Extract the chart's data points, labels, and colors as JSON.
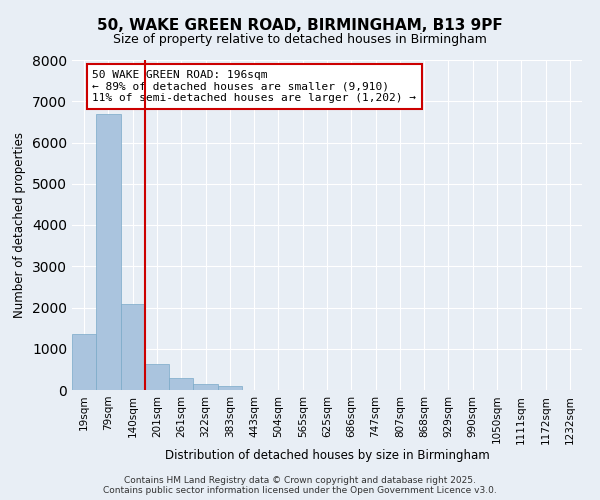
{
  "title": "50, WAKE GREEN ROAD, BIRMINGHAM, B13 9PF",
  "subtitle": "Size of property relative to detached houses in Birmingham",
  "xlabel": "Distribution of detached houses by size in Birmingham",
  "ylabel": "Number of detached properties",
  "bin_labels": [
    "19sqm",
    "79sqm",
    "140sqm",
    "201sqm",
    "261sqm",
    "322sqm",
    "383sqm",
    "443sqm",
    "504sqm",
    "565sqm",
    "625sqm",
    "686sqm",
    "747sqm",
    "807sqm",
    "868sqm",
    "929sqm",
    "990sqm",
    "1050sqm",
    "1111sqm",
    "1172sqm",
    "1232sqm"
  ],
  "bar_values": [
    1350,
    6680,
    2090,
    640,
    300,
    150,
    90,
    0,
    0,
    0,
    0,
    0,
    0,
    0,
    0,
    0,
    0,
    0,
    0,
    0,
    0
  ],
  "bar_color": "#aac4de",
  "bar_edge_color": "#7aaac8",
  "property_value": "196sqm",
  "annotation_line1": "50 WAKE GREEN ROAD: 196sqm",
  "annotation_line2": "← 89% of detached houses are smaller (9,910)",
  "annotation_line3": "11% of semi-detached houses are larger (1,202) →",
  "annotation_box_color": "#ffffff",
  "annotation_box_edge": "#cc0000",
  "vline_color": "#cc0000",
  "ylim": [
    0,
    8000
  ],
  "yticks": [
    0,
    1000,
    2000,
    3000,
    4000,
    5000,
    6000,
    7000,
    8000
  ],
  "background_color": "#e8eef5",
  "grid_color": "#ffffff",
  "footer_line1": "Contains HM Land Registry data © Crown copyright and database right 2025.",
  "footer_line2": "Contains public sector information licensed under the Open Government Licence v3.0."
}
